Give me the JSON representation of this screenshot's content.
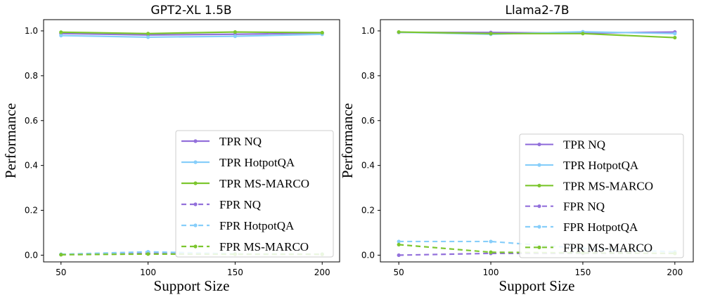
{
  "chart_data": [
    {
      "type": "line",
      "title": "GPT2-XL 1.5B",
      "xlabel": "Support Size",
      "ylabel": "Performance",
      "x": [
        50,
        100,
        150,
        200
      ],
      "xticks": [
        "50",
        "100",
        "150",
        "200"
      ],
      "yticks": [
        "0.0",
        "0.2",
        "0.4",
        "0.6",
        "0.8",
        "1.0"
      ],
      "xlim": [
        40,
        210
      ],
      "ylim": [
        -0.03,
        1.05
      ],
      "legend_position": "lower-right",
      "series": [
        {
          "name": "TPR NQ",
          "color": "#9370DB",
          "style": "solid",
          "values": [
            0.988,
            0.982,
            0.985,
            0.99
          ]
        },
        {
          "name": "TPR HotpotQA",
          "color": "#87CEFA",
          "style": "solid",
          "values": [
            0.979,
            0.972,
            0.976,
            0.985
          ]
        },
        {
          "name": "TPR MS-MARCO",
          "color": "#7CC62E",
          "style": "solid",
          "values": [
            0.994,
            0.988,
            0.995,
            0.992
          ]
        },
        {
          "name": "FPR NQ",
          "color": "#9370DB",
          "style": "dashed",
          "values": [
            0.003,
            0.008,
            0.005,
            0.004
          ]
        },
        {
          "name": "FPR HotpotQA",
          "color": "#87CEFA",
          "style": "dashed",
          "values": [
            0.004,
            0.015,
            0.006,
            0.005
          ]
        },
        {
          "name": "FPR MS-MARCO",
          "color": "#7CC62E",
          "style": "dashed",
          "values": [
            0.002,
            0.005,
            0.004,
            0.004
          ]
        }
      ]
    },
    {
      "type": "line",
      "title": "Llama2-7B",
      "xlabel": "Support Size",
      "ylabel": "Performance",
      "x": [
        50,
        100,
        150,
        200
      ],
      "xticks": [
        "50",
        "100",
        "150",
        "200"
      ],
      "yticks": [
        "0.0",
        "0.2",
        "0.4",
        "0.6",
        "0.8",
        "1.0"
      ],
      "xlim": [
        40,
        210
      ],
      "ylim": [
        -0.03,
        1.05
      ],
      "legend_position": "lower-right",
      "series": [
        {
          "name": "TPR NQ",
          "color": "#9370DB",
          "style": "solid",
          "values": [
            0.993,
            0.993,
            0.99,
            0.995
          ]
        },
        {
          "name": "TPR HotpotQA",
          "color": "#87CEFA",
          "style": "solid",
          "values": [
            0.994,
            0.985,
            0.996,
            0.988
          ]
        },
        {
          "name": "TPR MS-MARCO",
          "color": "#7CC62E",
          "style": "solid",
          "values": [
            0.995,
            0.988,
            0.988,
            0.97
          ]
        },
        {
          "name": "FPR NQ",
          "color": "#9370DB",
          "style": "dashed",
          "values": [
            0.0,
            0.008,
            0.008,
            0.008
          ]
        },
        {
          "name": "FPR HotpotQA",
          "color": "#87CEFA",
          "style": "dashed",
          "values": [
            0.061,
            0.061,
            0.03,
            0.015
          ]
        },
        {
          "name": "FPR MS-MARCO",
          "color": "#7CC62E",
          "style": "dashed",
          "values": [
            0.047,
            0.013,
            0.01,
            0.008
          ]
        }
      ]
    }
  ]
}
